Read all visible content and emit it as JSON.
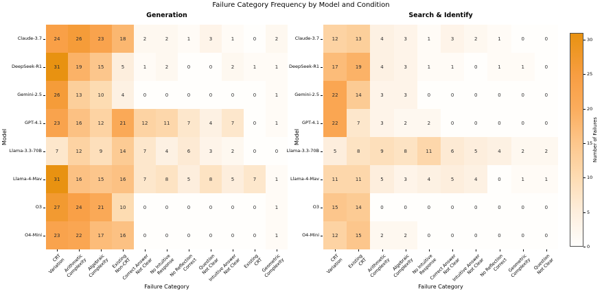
{
  "title": "Failure Category Frequency by Model and Condition",
  "axis": {
    "x_label": "Failure Category",
    "y_label": "Model"
  },
  "colorbar": {
    "label": "Number of Failures",
    "ticks": [
      0,
      5,
      10,
      15,
      20,
      25,
      30
    ],
    "vmax": 31
  },
  "colormap_stops": [
    {
      "t": 0.0,
      "color": "#fffefc"
    },
    {
      "t": 0.16,
      "color": "#fdeedd"
    },
    {
      "t": 0.32,
      "color": "#fddcb3"
    },
    {
      "t": 0.48,
      "color": "#fcc78d"
    },
    {
      "t": 0.65,
      "color": "#fbac5c"
    },
    {
      "t": 0.8,
      "color": "#f89e43"
    },
    {
      "t": 1.0,
      "color": "#e89211"
    }
  ],
  "chart_data": [
    {
      "type": "heatmap",
      "title": "Generation",
      "x_categories": [
        "CRT\nVariation",
        "Arithmetic\nComplexity",
        "Algebraic\nComplexity",
        "Existing\nNon-CRT",
        "Correct Answer\nNot Clear",
        "No Intuitive\nResponse",
        "No Reflection\nCorrect",
        "Question\nNot Clear",
        "Intuitive Answer\nNot Clear",
        "Existing\nCRT",
        "Geometric\nComplexity"
      ],
      "y_categories": [
        "Claude-3.7",
        "DeepSeek-R1",
        "Gemini-2.5",
        "GPT-4.1",
        "Llama-3.3-70B",
        "Llama-4-Mav",
        "O3",
        "O4-Mini"
      ],
      "values": [
        [
          24,
          26,
          23,
          18,
          2,
          2,
          1,
          3,
          1,
          0,
          2
        ],
        [
          31,
          19,
          15,
          5,
          1,
          2,
          0,
          0,
          2,
          1,
          1
        ],
        [
          26,
          13,
          10,
          4,
          0,
          0,
          0,
          0,
          0,
          0,
          1
        ],
        [
          23,
          16,
          12,
          21,
          12,
          11,
          7,
          4,
          7,
          0,
          1
        ],
        [
          7,
          12,
          9,
          14,
          7,
          4,
          6,
          3,
          2,
          0,
          0
        ],
        [
          31,
          16,
          15,
          16,
          7,
          8,
          5,
          8,
          5,
          7,
          1
        ],
        [
          27,
          24,
          21,
          10,
          0,
          0,
          0,
          0,
          0,
          0,
          1
        ],
        [
          23,
          22,
          17,
          16,
          0,
          0,
          0,
          0,
          0,
          0,
          1
        ]
      ]
    },
    {
      "type": "heatmap",
      "title": "Search & Identify",
      "x_categories": [
        "CRT\nVariation",
        "Existing\nCRT",
        "Arithmetic\nComplexity",
        "Algebraic\nComplexity",
        "No Intuitive\nResponse",
        "Correct Answer\nNot Clear",
        "Intuitive Answer\nNot Clear",
        "No Reflection\nCorrect",
        "Geometric\nComplexity",
        "Question\nNot Clear"
      ],
      "y_categories": [
        "Claude-3.7",
        "DeepSeek-R1",
        "Gemini-2.5",
        "GPT-4.1",
        "Llama-3.3-70B",
        "Llama-4-Mav",
        "O3",
        "O4-Mini"
      ],
      "values": [
        [
          12,
          13,
          4,
          3,
          1,
          3,
          2,
          1,
          0,
          0
        ],
        [
          17,
          19,
          4,
          3,
          1,
          1,
          0,
          1,
          1,
          0
        ],
        [
          22,
          14,
          3,
          3,
          0,
          0,
          0,
          0,
          0,
          0
        ],
        [
          22,
          7,
          3,
          2,
          2,
          0,
          0,
          0,
          0,
          0
        ],
        [
          5,
          8,
          9,
          8,
          11,
          6,
          5,
          4,
          2,
          2
        ],
        [
          11,
          11,
          5,
          3,
          4,
          5,
          4,
          0,
          1,
          1
        ],
        [
          15,
          14,
          0,
          0,
          0,
          0,
          0,
          0,
          0,
          0
        ],
        [
          12,
          15,
          2,
          2,
          0,
          0,
          0,
          0,
          0,
          0
        ]
      ]
    }
  ]
}
